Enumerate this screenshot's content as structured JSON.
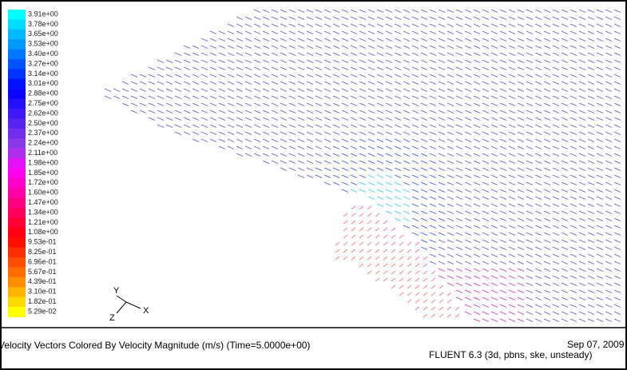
{
  "colorbar": {
    "labels": [
      "3.91e+00",
      "3.78e+00",
      "3.65e+00",
      "3.53e+00",
      "3.40e+00",
      "3.27e+00",
      "3.14e+00",
      "3.01e+00",
      "2.88e+00",
      "2.75e+00",
      "2.62e+00",
      "2.50e+00",
      "2.37e+00",
      "2.24e+00",
      "2.11e+00",
      "1.98e+00",
      "1.85e+00",
      "1.72e+00",
      "1.60e+00",
      "1.47e+00",
      "1.34e+00",
      "1.21e+00",
      "1.08e+00",
      "9.53e-01",
      "8.25e-01",
      "6.96e-01",
      "5.67e-01",
      "4.39e-01",
      "3.10e-01",
      "1.82e-01",
      "5.29e-02"
    ]
  },
  "axes": {
    "x": "X",
    "y": "Y",
    "z": "Z"
  },
  "footer": {
    "title": "Velocity Vectors Colored By Velocity Magnitude (m/s)  (Time=5.0000e+00)",
    "date": "Sep 07, 2009",
    "solver": "FLUENT 6.3 (3d, pbns, ske, unsteady)"
  }
}
